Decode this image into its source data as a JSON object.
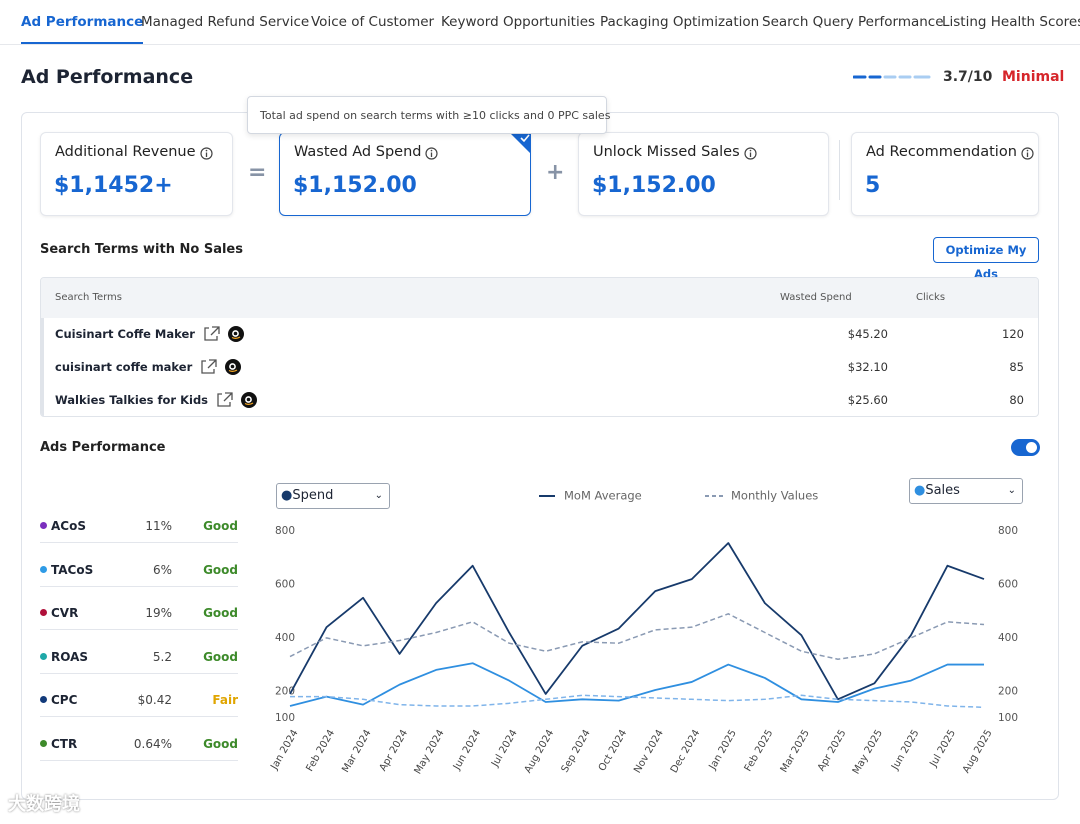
{
  "tabs": {
    "items": [
      "Ad Performance",
      "Managed Refund Service",
      "Voice of Customer",
      "Keyword Opportunities",
      "Packaging Optimization",
      "Search Query Performance",
      "Listing Health Scores"
    ],
    "active": 0
  },
  "header": {
    "title": "Ad Performance",
    "score": "3.7/10",
    "rating": "Minimal"
  },
  "tooltip": "Total ad spend on search terms with ≥10 clicks and 0 PPC sales",
  "cards": [
    {
      "label": "Additional Revenue",
      "value": "$1,1452+"
    },
    {
      "label": "Wasted Ad Spend",
      "value": "$1,152.00"
    },
    {
      "label": "Unlock Missed Sales",
      "value": "$1,152.00"
    },
    {
      "label": "Ad Recommendation",
      "value": "5"
    }
  ],
  "operators": [
    "=",
    "+"
  ],
  "search_terms": {
    "title": "Search Terms with No Sales",
    "button": "Optimize My Ads",
    "columns": [
      "Search Terms",
      "Wasted Spend",
      "Clicks"
    ],
    "rows": [
      [
        "Cuisinart Coffe Maker",
        "$45.20",
        120
      ],
      [
        "cuisinart coffe maker",
        "$32.10",
        85
      ],
      [
        "Walkies Talkies for Kids",
        "$25.60",
        80
      ]
    ]
  },
  "ads": {
    "title": "Ads Performance",
    "toggle_on": true,
    "metrics": [
      {
        "name": "ACoS",
        "value": "11%",
        "status": "Good",
        "color": "#7b2fbe"
      },
      {
        "name": "TACoS",
        "value": "6%",
        "status": "Good",
        "color": "#2e9be6"
      },
      {
        "name": "CVR",
        "value": "19%",
        "status": "Good",
        "color": "#b0103a"
      },
      {
        "name": "ROAS",
        "value": "5.2",
        "status": "Good",
        "color": "#1fa8a8"
      },
      {
        "name": "CPC",
        "value": "$0.42",
        "status": "Fair",
        "color": "#123a7a"
      },
      {
        "name": "CTR",
        "value": "0.64%",
        "status": "Good",
        "color": "#3d8a2a"
      }
    ]
  },
  "chart_data": {
    "type": "line",
    "left_select": "Spend",
    "right_select": "Sales",
    "legend": [
      "MoM Average",
      "Monthly Values"
    ],
    "categories": [
      "Jan 2024",
      "Feb 2024",
      "Mar 2024",
      "Apr 2024",
      "May 2024",
      "Jun 2024",
      "Jul 2024",
      "Aug 2024",
      "Sep 2024",
      "Oct 2024",
      "Nov 2024",
      "Dec 2024",
      "Jan 2025",
      "Feb 2025",
      "Mar 2025",
      "Apr 2025",
      "May 2025",
      "Jun 2025",
      "Jul 2025",
      "Aug 2025"
    ],
    "ylim": [
      100,
      800
    ],
    "yticks": [
      100,
      200,
      400,
      600,
      800
    ],
    "y2lim": [
      100,
      800
    ],
    "y2ticks": [
      100,
      200,
      400,
      600,
      800
    ],
    "series": [
      {
        "color": "#173a6b",
        "dashed": false,
        "values": [
          190,
          440,
          550,
          340,
          530,
          670,
          420,
          190,
          370,
          435,
          575,
          620,
          755,
          530,
          410,
          170,
          230,
          410,
          670,
          620
        ]
      },
      {
        "color": "#8a9ab3",
        "dashed": true,
        "values": [
          330,
          400,
          370,
          390,
          420,
          460,
          380,
          350,
          385,
          380,
          430,
          440,
          490,
          420,
          350,
          320,
          340,
          400,
          460,
          450
        ]
      },
      {
        "color": "#2f8fe0",
        "dashed": false,
        "axis": "y2",
        "values": [
          145,
          180,
          150,
          225,
          280,
          305,
          240,
          160,
          170,
          165,
          205,
          235,
          300,
          250,
          170,
          160,
          210,
          240,
          300,
          300
        ]
      },
      {
        "color": "#7fb4ea",
        "dashed": true,
        "axis": "y2",
        "values": [
          180,
          180,
          170,
          150,
          145,
          145,
          155,
          170,
          185,
          180,
          175,
          170,
          165,
          170,
          185,
          170,
          165,
          160,
          145,
          140
        ]
      }
    ]
  },
  "watermark": "大数跨境"
}
